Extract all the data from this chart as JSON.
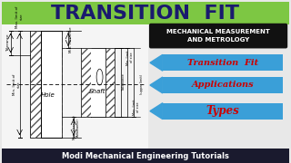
{
  "title": "TRANSITION  FIT",
  "title_bg": "#7dc743",
  "title_color": "#1a1a6e",
  "subtitle": "MECHANICAL MEASUREMENT\nAND METROLOGY",
  "subtitle_bg": "#111111",
  "subtitle_color": "#ffffff",
  "bottom_text": "Modi Mechanical Engineering Tutorials",
  "bottom_bg": "#1a1a2e",
  "bottom_color": "#ffffff",
  "arrow_color": "#3a9fd8",
  "arrow_labels": [
    "Transition  Fit",
    "Applications",
    "Types"
  ],
  "arrow_label_color": "#cc0000",
  "bg_color": "#e8e8e8",
  "diagram_bg": "#f5f5f5"
}
